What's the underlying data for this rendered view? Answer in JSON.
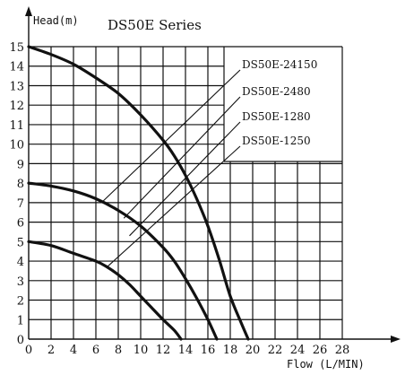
{
  "chart_data": {
    "type": "line",
    "title": "DS50E Series",
    "xlabel": "Flow (L/MIN)",
    "ylabel": "Head(m)",
    "xlim": [
      0,
      28
    ],
    "ylim": [
      0,
      15
    ],
    "xticks": [
      "0",
      "2",
      "4",
      "6",
      "8",
      "10",
      "12",
      "14",
      "16",
      "18",
      "20",
      "22",
      "24",
      "26",
      "28"
    ],
    "yticks": [
      "0",
      "1",
      "2",
      "3",
      "4",
      "5",
      "6",
      "7",
      "8",
      "9",
      "10",
      "11",
      "12",
      "13",
      "14",
      "15"
    ],
    "grid": true,
    "legend": "top-right with leader lines",
    "series": [
      {
        "name": "DS50E-24150",
        "points": [
          [
            0,
            15
          ],
          [
            2,
            14.6
          ],
          [
            4,
            14.1
          ],
          [
            6,
            13.4
          ],
          [
            8,
            12.6
          ],
          [
            10,
            11.5
          ],
          [
            12,
            10.2
          ],
          [
            13,
            9.4
          ],
          [
            14,
            8.4
          ],
          [
            15,
            7.2
          ],
          [
            16,
            5.8
          ],
          [
            17,
            4.1
          ],
          [
            18,
            2.2
          ],
          [
            19,
            0.8
          ],
          [
            19.6,
            0
          ]
        ]
      },
      {
        "name": "DS50E-2480",
        "points": [
          [
            0,
            8.0
          ],
          [
            2,
            7.85
          ],
          [
            4,
            7.6
          ],
          [
            6,
            7.2
          ],
          [
            8,
            6.6
          ],
          [
            10,
            5.8
          ],
          [
            12,
            4.7
          ],
          [
            13,
            4.0
          ],
          [
            14,
            3.1
          ],
          [
            15,
            2.1
          ],
          [
            16,
            1.0
          ],
          [
            16.8,
            0
          ]
        ]
      },
      {
        "name": "DS50E-1280",
        "points": [
          [
            0,
            5.0
          ],
          [
            2,
            4.8
          ],
          [
            4,
            4.4
          ],
          [
            6,
            4.0
          ],
          [
            7,
            3.7
          ],
          [
            8,
            3.3
          ],
          [
            9,
            2.8
          ],
          [
            10,
            2.2
          ],
          [
            11,
            1.6
          ],
          [
            12,
            1.0
          ],
          [
            13,
            0.45
          ],
          [
            13.6,
            0
          ]
        ]
      },
      {
        "name": "DS50E-1250",
        "points": []
      }
    ]
  }
}
